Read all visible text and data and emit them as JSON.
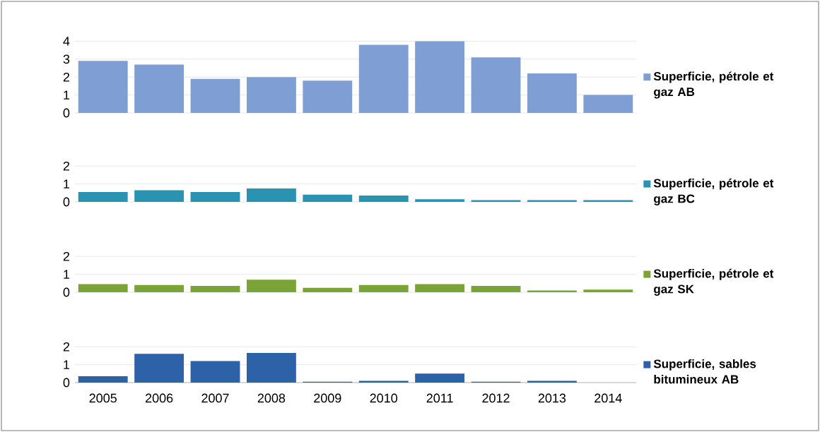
{
  "chart_data": [
    {
      "type": "bar",
      "categories": [
        "2005",
        "2006",
        "2007",
        "2008",
        "2009",
        "2010",
        "2011",
        "2012",
        "2013",
        "2014"
      ],
      "series": [
        {
          "name": "Superficie, pétrole et gaz AB",
          "color": "#7f9ed3",
          "values": [
            2.9,
            2.7,
            1.9,
            2.0,
            1.8,
            3.8,
            4.0,
            3.1,
            2.2,
            1.0
          ]
        }
      ],
      "ylim": [
        0,
        4
      ],
      "yticks": [
        0,
        1,
        2,
        3,
        4
      ],
      "grid": "y",
      "legend": "right",
      "tick_labels": "y"
    },
    {
      "type": "bar",
      "categories": [
        "2005",
        "2006",
        "2007",
        "2008",
        "2009",
        "2010",
        "2011",
        "2012",
        "2013",
        "2014"
      ],
      "series": [
        {
          "name": "Superficie, pétrole et gaz BC",
          "color": "#2a93b3",
          "values": [
            0.55,
            0.65,
            0.55,
            0.75,
            0.4,
            0.35,
            0.15,
            0.1,
            0.1,
            0.1
          ]
        }
      ],
      "ylim": [
        0,
        2
      ],
      "yticks": [
        0,
        1,
        2
      ],
      "grid": "y",
      "legend": "right",
      "tick_labels": "y"
    },
    {
      "type": "bar",
      "categories": [
        "2005",
        "2006",
        "2007",
        "2008",
        "2009",
        "2010",
        "2011",
        "2012",
        "2013",
        "2014"
      ],
      "series": [
        {
          "name": "Superficie, pétrole et gaz SK",
          "color": "#7aa536",
          "values": [
            0.45,
            0.4,
            0.35,
            0.7,
            0.25,
            0.4,
            0.45,
            0.35,
            0.1,
            0.15
          ]
        }
      ],
      "ylim": [
        0,
        2
      ],
      "yticks": [
        0,
        1,
        2
      ],
      "grid": "y",
      "legend": "right",
      "tick_labels": "y"
    },
    {
      "type": "bar",
      "categories": [
        "2005",
        "2006",
        "2007",
        "2008",
        "2009",
        "2010",
        "2011",
        "2012",
        "2013",
        "2014"
      ],
      "series": [
        {
          "name": "Superficie, sables bitumineux AB",
          "color": "#2e62a8",
          "values": [
            0.35,
            1.6,
            1.2,
            1.65,
            0.05,
            0.1,
            0.5,
            0.05,
            0.1,
            0
          ]
        }
      ],
      "ylim": [
        0,
        2
      ],
      "yticks": [
        0,
        1,
        2
      ],
      "grid": "y",
      "legend": "right"
    }
  ]
}
